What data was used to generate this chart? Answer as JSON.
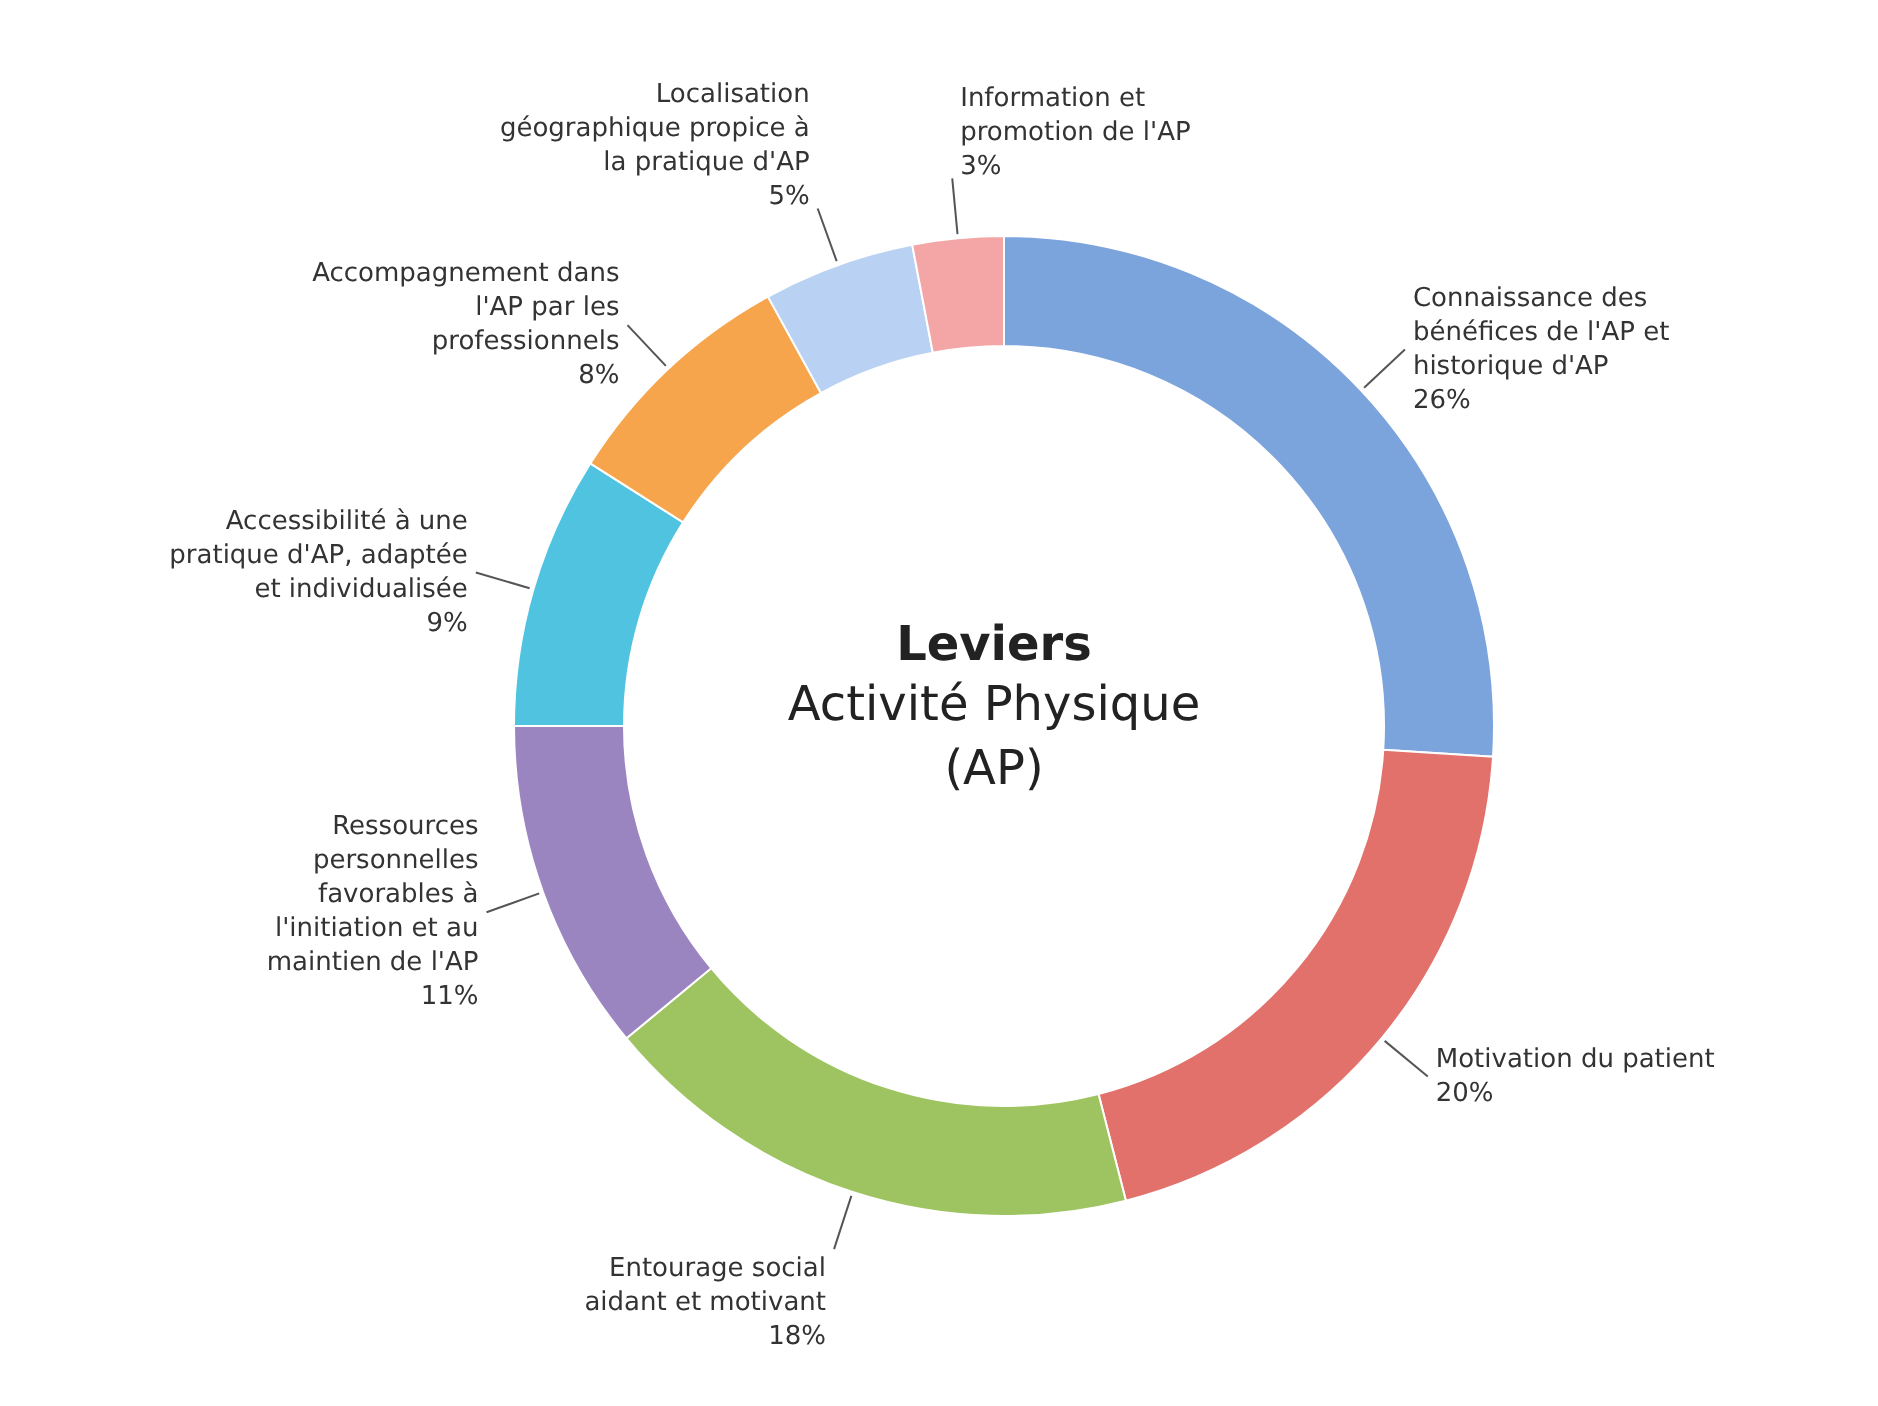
{
  "chart_data": {
    "type": "donut",
    "title": "Leviers",
    "subtitle": "Activité Physique (AP)",
    "categories": [
      "Connaissance des bénéfices de l'AP et historique d'AP",
      "Motivation du patient",
      "Entourage social aidant et motivant",
      "Ressources personnelles favorables à l'initiation et au maintien de l'AP",
      "Accessibilité à une pratique d'AP, adaptée et individualisée",
      "Accompagnement dans l'AP par les professionnels",
      "Localisation géographique propice à la pratique d'AP",
      "Information et promotion de l'AP"
    ],
    "values": [
      26,
      20,
      18,
      11,
      9,
      8,
      5,
      3
    ],
    "value_labels": [
      "26%",
      "20%",
      "18%",
      "11%",
      "9%",
      "8%",
      "5%",
      "3%"
    ],
    "colors": [
      "#7ba3dc",
      "#e2716c",
      "#9dc460",
      "#9b85c0",
      "#4fc3e0",
      "#f6a54d",
      "#b9d1f2",
      "#f4a6a6"
    ],
    "legend": false
  }
}
